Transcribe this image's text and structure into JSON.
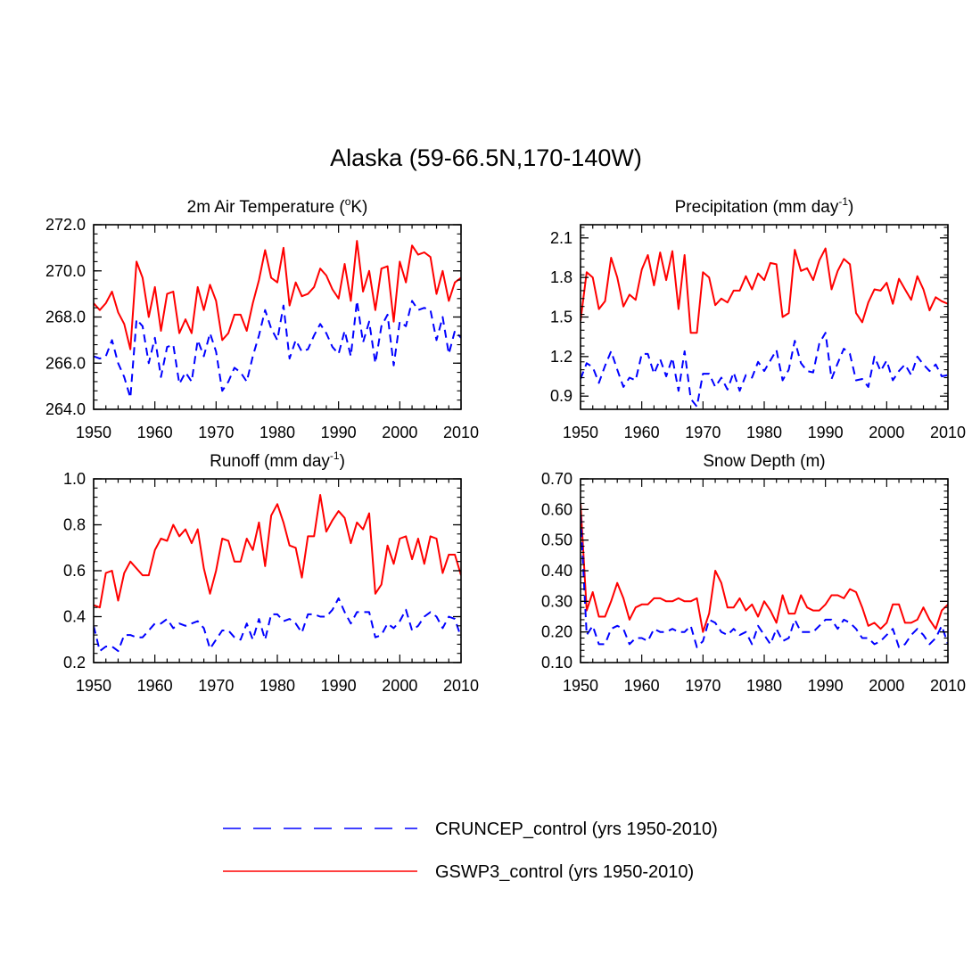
{
  "figure": {
    "title": "Alaska (59-66.5N,170-140W)"
  },
  "legend": {
    "placement": "bottom-center",
    "entries": [
      {
        "label": "CRUNCEP_control (yrs 1950-2010)",
        "color": "#0000ff",
        "style": "dashed"
      },
      {
        "label": "GSWP3_control (yrs 1950-2010)",
        "color": "#ff0000",
        "style": "solid"
      }
    ]
  },
  "chart_data": [
    {
      "id": "temp",
      "type": "line",
      "title_parts": [
        "2m Air Temperature (",
        "o",
        "K)"
      ],
      "title_part_styles": [
        "normal",
        "super",
        "normal"
      ],
      "xlim": [
        1950,
        2010
      ],
      "ylim": [
        264,
        272
      ],
      "xticks": [
        1950,
        1960,
        1970,
        1980,
        1990,
        2000,
        2010
      ],
      "yticks": [
        264,
        266,
        268,
        270,
        272
      ],
      "ytick_labels": [
        "264.0",
        "266.0",
        "268.0",
        "270.0",
        "272.0"
      ],
      "y_minor_step": 0.4,
      "x_start": 1950,
      "series": [
        {
          "name": "GSWP3_control (yrs 1950-2010)",
          "color": "#ff0000",
          "style": "solid",
          "values": [
            268.6,
            268.3,
            268.6,
            269.1,
            268.2,
            267.7,
            266.6,
            270.4,
            269.7,
            268.0,
            269.3,
            267.4,
            269.0,
            269.1,
            267.3,
            267.9,
            267.3,
            269.3,
            268.3,
            269.4,
            268.7,
            267.0,
            267.3,
            268.1,
            268.1,
            267.4,
            268.6,
            269.6,
            270.9,
            269.7,
            269.5,
            271.0,
            268.5,
            269.5,
            268.9,
            269.0,
            269.3,
            270.1,
            269.8,
            269.2,
            268.8,
            270.3,
            268.7,
            271.3,
            269.1,
            270.0,
            268.3,
            270.1,
            270.2,
            267.8,
            270.4,
            269.5,
            271.1,
            270.7,
            270.8,
            270.6,
            269.0,
            270.0,
            268.7,
            269.5,
            269.7
          ]
        },
        {
          "name": "CRUNCEP_control (yrs 1950-2010)",
          "color": "#0000ff",
          "style": "dashed",
          "values": [
            266.3,
            266.2,
            266.3,
            267.0,
            266.0,
            265.4,
            264.5,
            267.9,
            267.6,
            266.0,
            267.1,
            265.4,
            266.7,
            266.8,
            265.1,
            265.6,
            265.2,
            267.0,
            266.3,
            267.3,
            266.5,
            264.8,
            265.2,
            265.8,
            265.6,
            265.2,
            266.3,
            267.2,
            268.3,
            267.5,
            267.0,
            268.5,
            266.2,
            267.0,
            266.5,
            266.6,
            267.2,
            267.7,
            267.3,
            266.7,
            266.4,
            267.4,
            266.3,
            268.7,
            266.9,
            267.8,
            266.0,
            267.6,
            268.1,
            265.9,
            267.8,
            267.6,
            268.7,
            268.3,
            268.4,
            268.3,
            267.0,
            268.0,
            266.4,
            267.4,
            267.1
          ]
        }
      ]
    },
    {
      "id": "precip",
      "type": "line",
      "title_parts": [
        "Precipitation (mm day",
        "-1",
        ")"
      ],
      "title_part_styles": [
        "normal",
        "super",
        "normal"
      ],
      "xlim": [
        1950,
        2010
      ],
      "ylim": [
        0.8,
        2.2
      ],
      "xticks": [
        1950,
        1960,
        1970,
        1980,
        1990,
        2000,
        2010
      ],
      "yticks": [
        0.9,
        1.2,
        1.5,
        1.8,
        2.1
      ],
      "ytick_labels": [
        "0.9",
        "1.2",
        "1.5",
        "1.8",
        "2.1"
      ],
      "y_minor_step": 0.06,
      "x_start": 1950,
      "series": [
        {
          "name": "GSWP3_control (yrs 1950-2010)",
          "color": "#ff0000",
          "style": "solid",
          "values": [
            1.47,
            1.84,
            1.8,
            1.56,
            1.62,
            1.95,
            1.8,
            1.58,
            1.67,
            1.63,
            1.86,
            1.97,
            1.74,
            1.99,
            1.78,
            2.0,
            1.56,
            1.97,
            1.38,
            1.38,
            1.84,
            1.8,
            1.59,
            1.64,
            1.61,
            1.7,
            1.7,
            1.81,
            1.71,
            1.83,
            1.78,
            1.91,
            1.9,
            1.5,
            1.53,
            2.01,
            1.85,
            1.87,
            1.78,
            1.93,
            2.02,
            1.71,
            1.85,
            1.94,
            1.9,
            1.53,
            1.46,
            1.61,
            1.71,
            1.7,
            1.76,
            1.6,
            1.79,
            1.71,
            1.63,
            1.81,
            1.71,
            1.55,
            1.65,
            1.62,
            1.6
          ]
        },
        {
          "name": "CRUNCEP_control (yrs 1950-2010)",
          "color": "#0000ff",
          "style": "dashed",
          "values": [
            1.03,
            1.15,
            1.12,
            1.0,
            1.13,
            1.24,
            1.1,
            0.97,
            1.04,
            1.02,
            1.22,
            1.22,
            1.07,
            1.18,
            1.05,
            1.19,
            0.94,
            1.24,
            0.88,
            0.82,
            1.07,
            1.07,
            0.97,
            1.04,
            0.95,
            1.08,
            0.94,
            1.06,
            1.04,
            1.16,
            1.09,
            1.17,
            1.25,
            1.02,
            1.1,
            1.32,
            1.15,
            1.09,
            1.08,
            1.3,
            1.38,
            1.03,
            1.15,
            1.26,
            1.22,
            1.02,
            1.03,
            0.97,
            1.2,
            1.09,
            1.17,
            1.02,
            1.09,
            1.14,
            1.06,
            1.2,
            1.14,
            1.09,
            1.14,
            1.05,
            1.06
          ]
        }
      ]
    },
    {
      "id": "runoff",
      "type": "line",
      "title_parts": [
        "Runoff (mm day",
        "-1",
        ")"
      ],
      "title_part_styles": [
        "normal",
        "super",
        "normal"
      ],
      "xlim": [
        1950,
        2010
      ],
      "ylim": [
        0.2,
        1.0
      ],
      "xticks": [
        1950,
        1960,
        1970,
        1980,
        1990,
        2000,
        2010
      ],
      "yticks": [
        0.2,
        0.4,
        0.6,
        0.8,
        1.0
      ],
      "ytick_labels": [
        "0.2",
        "0.4",
        "0.6",
        "0.8",
        "1.0"
      ],
      "y_minor_step": 0.04,
      "x_start": 1950,
      "series": [
        {
          "name": "GSWP3_control (yrs 1950-2010)",
          "color": "#ff0000",
          "style": "solid",
          "values": [
            0.45,
            0.44,
            0.59,
            0.6,
            0.47,
            0.59,
            0.64,
            0.61,
            0.58,
            0.58,
            0.69,
            0.74,
            0.73,
            0.8,
            0.75,
            0.78,
            0.72,
            0.78,
            0.61,
            0.5,
            0.6,
            0.74,
            0.73,
            0.64,
            0.64,
            0.74,
            0.69,
            0.81,
            0.62,
            0.84,
            0.89,
            0.81,
            0.71,
            0.7,
            0.57,
            0.75,
            0.75,
            0.93,
            0.77,
            0.82,
            0.86,
            0.83,
            0.72,
            0.81,
            0.78,
            0.85,
            0.5,
            0.54,
            0.71,
            0.63,
            0.74,
            0.75,
            0.65,
            0.74,
            0.63,
            0.75,
            0.74,
            0.59,
            0.67,
            0.67,
            0.58
          ]
        },
        {
          "name": "CRUNCEP_control (yrs 1950-2010)",
          "color": "#0000ff",
          "style": "dashed",
          "values": [
            0.36,
            0.25,
            0.27,
            0.27,
            0.25,
            0.32,
            0.32,
            0.31,
            0.31,
            0.34,
            0.37,
            0.37,
            0.39,
            0.35,
            0.37,
            0.36,
            0.37,
            0.38,
            0.35,
            0.26,
            0.3,
            0.34,
            0.34,
            0.31,
            0.3,
            0.37,
            0.3,
            0.39,
            0.3,
            0.41,
            0.41,
            0.38,
            0.39,
            0.37,
            0.33,
            0.41,
            0.41,
            0.4,
            0.4,
            0.43,
            0.48,
            0.42,
            0.37,
            0.42,
            0.42,
            0.42,
            0.31,
            0.32,
            0.37,
            0.35,
            0.38,
            0.43,
            0.34,
            0.36,
            0.4,
            0.42,
            0.4,
            0.35,
            0.4,
            0.39,
            0.31
          ]
        }
      ]
    },
    {
      "id": "snow",
      "type": "line",
      "title_parts": [
        "Snow Depth (m)"
      ],
      "title_part_styles": [
        "normal"
      ],
      "xlim": [
        1950,
        2010
      ],
      "ylim": [
        0.1,
        0.7
      ],
      "xticks": [
        1950,
        1960,
        1970,
        1980,
        1990,
        2000,
        2010
      ],
      "yticks": [
        0.1,
        0.2,
        0.3,
        0.4,
        0.5,
        0.6,
        0.7
      ],
      "ytick_labels": [
        "0.10",
        "0.20",
        "0.30",
        "0.40",
        "0.50",
        "0.60",
        "0.70"
      ],
      "y_minor_step": 0.02,
      "x_start": 1950,
      "series": [
        {
          "name": "GSWP3_control (yrs 1950-2010)",
          "color": "#ff0000",
          "style": "solid",
          "values": [
            0.62,
            0.27,
            0.33,
            0.25,
            0.25,
            0.3,
            0.36,
            0.31,
            0.24,
            0.28,
            0.29,
            0.29,
            0.31,
            0.31,
            0.3,
            0.3,
            0.31,
            0.3,
            0.3,
            0.31,
            0.2,
            0.26,
            0.4,
            0.36,
            0.28,
            0.28,
            0.31,
            0.27,
            0.29,
            0.25,
            0.3,
            0.27,
            0.23,
            0.32,
            0.26,
            0.26,
            0.32,
            0.28,
            0.27,
            0.27,
            0.29,
            0.32,
            0.32,
            0.31,
            0.34,
            0.33,
            0.28,
            0.22,
            0.23,
            0.21,
            0.23,
            0.29,
            0.29,
            0.23,
            0.23,
            0.24,
            0.28,
            0.24,
            0.21,
            0.27,
            0.29
          ]
        },
        {
          "name": "CRUNCEP_control (yrs 1950-2010)",
          "color": "#0000ff",
          "style": "dashed",
          "values": [
            0.58,
            0.19,
            0.22,
            0.16,
            0.16,
            0.21,
            0.22,
            0.21,
            0.16,
            0.18,
            0.18,
            0.17,
            0.21,
            0.2,
            0.2,
            0.21,
            0.2,
            0.2,
            0.22,
            0.15,
            0.17,
            0.24,
            0.23,
            0.2,
            0.19,
            0.21,
            0.19,
            0.2,
            0.16,
            0.22,
            0.19,
            0.16,
            0.21,
            0.17,
            0.18,
            0.24,
            0.2,
            0.2,
            0.2,
            0.22,
            0.24,
            0.24,
            0.21,
            0.24,
            0.23,
            0.21,
            0.18,
            0.18,
            0.16,
            0.17,
            0.19,
            0.21,
            0.15,
            0.16,
            0.19,
            0.21,
            0.19,
            0.16,
            0.18,
            0.22,
            0.16
          ]
        }
      ]
    }
  ]
}
